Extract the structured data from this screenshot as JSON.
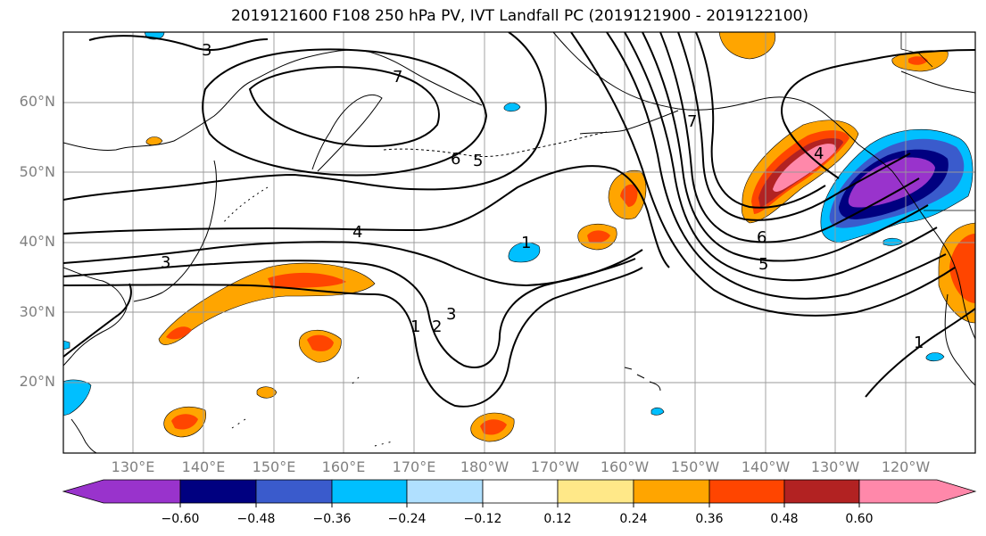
{
  "title": "2019121600 F108 250 hPa PV, IVT Landfall PC (2019121900 - 2019122100)",
  "latitude_labels": [
    "60°N",
    "50°N",
    "40°N",
    "30°N",
    "20°N"
  ],
  "longitude_labels": [
    "130°E",
    "140°E",
    "150°E",
    "160°E",
    "170°E",
    "180°W",
    "170°W",
    "160°W",
    "150°W",
    "140°W",
    "130°W",
    "120°W"
  ],
  "contour_labels": [
    "3",
    "7",
    "6",
    "5",
    "4",
    "3",
    "1",
    "2",
    "3",
    "1",
    "7",
    "6",
    "5",
    "4",
    "1"
  ],
  "colorbar": {
    "ticks": [
      "−0.60",
      "−0.48",
      "−0.36",
      "−0.24",
      "−0.12",
      "0.12",
      "0.24",
      "0.36",
      "0.48",
      "0.60"
    ],
    "colors": [
      "#9933CC",
      "#000080",
      "#3A5BCC",
      "#00BFFF",
      "#B0E0FF",
      "#FFFFFF",
      "#FFE888",
      "#FFA500",
      "#FF4500",
      "#B22222",
      "#FF88AA"
    ]
  }
}
